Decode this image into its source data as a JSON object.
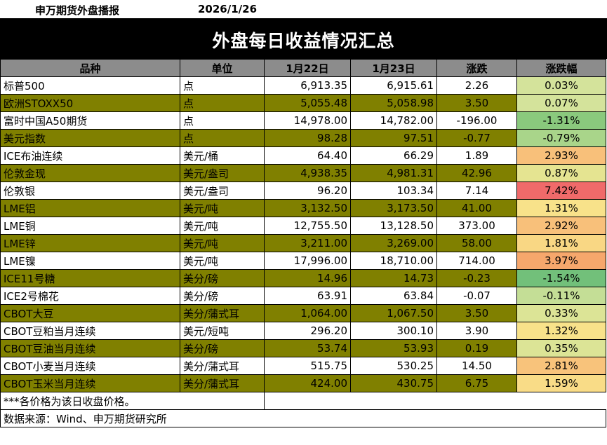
{
  "header": {
    "brand": "申万期货外盘播报",
    "date": "2026/1/26"
  },
  "title": "外盘每日收益情况汇总",
  "columns": [
    "品种",
    "单位",
    "1月22日",
    "1月23日",
    "涨跌",
    "涨跌幅"
  ],
  "rows": [
    {
      "name": "标普500",
      "unit": "点",
      "d1": "6,913.35",
      "d2": "6,915.61",
      "chg": "2.26",
      "pct": "0.03%",
      "pct_color": "#d4e39b"
    },
    {
      "name": "欧洲STOXX50",
      "unit": "点",
      "d1": "5,055.48",
      "d2": "5,058.98",
      "chg": "3.50",
      "pct": "0.07%",
      "pct_color": "#d4e39b"
    },
    {
      "name": "富时中国A50期货",
      "unit": "点",
      "d1": "14,978.00",
      "d2": "14,782.00",
      "chg": "-196.00",
      "pct": "-1.31%",
      "pct_color": "#8ac97d"
    },
    {
      "name": "美元指数",
      "unit": "点",
      "d1": "98.28",
      "d2": "97.51",
      "chg": "-0.77",
      "pct": "-0.79%",
      "pct_color": "#a9d58a"
    },
    {
      "name": "ICE布油连续",
      "unit": "美元/桶",
      "d1": "64.40",
      "d2": "66.29",
      "chg": "1.89",
      "pct": "2.93%",
      "pct_color": "#f8c07a"
    },
    {
      "name": "伦敦金现",
      "unit": "美元/盎司",
      "d1": "4,938.35",
      "d2": "4,981.31",
      "chg": "42.96",
      "pct": "0.87%",
      "pct_color": "#e5e491"
    },
    {
      "name": "伦敦银",
      "unit": "美元/盎司",
      "d1": "96.20",
      "d2": "103.34",
      "chg": "7.14",
      "pct": "7.42%",
      "pct_color": "#f06a6a"
    },
    {
      "name": "LME铝",
      "unit": "美元/吨",
      "d1": "3,132.50",
      "d2": "3,173.50",
      "chg": "41.00",
      "pct": "1.31%",
      "pct_color": "#f8e28a"
    },
    {
      "name": "LME铜",
      "unit": "美元/吨",
      "d1": "12,755.50",
      "d2": "13,128.50",
      "chg": "373.00",
      "pct": "2.92%",
      "pct_color": "#f8c07a"
    },
    {
      "name": "LME锌",
      "unit": "美元/吨",
      "d1": "3,211.00",
      "d2": "3,269.00",
      "chg": "58.00",
      "pct": "1.81%",
      "pct_color": "#f9d784"
    },
    {
      "name": "LME镍",
      "unit": "美元/吨",
      "d1": "17,996.00",
      "d2": "18,710.00",
      "chg": "714.00",
      "pct": "3.97%",
      "pct_color": "#f6a76c"
    },
    {
      "name": "ICE11号糖",
      "unit": "美分/磅",
      "d1": "14.96",
      "d2": "14.73",
      "chg": "-0.23",
      "pct": "-1.54%",
      "pct_color": "#72c07a"
    },
    {
      "name": "ICE2号棉花",
      "unit": "美分/磅",
      "d1": "63.91",
      "d2": "63.84",
      "chg": "-0.07",
      "pct": "-0.11%",
      "pct_color": "#c4de96"
    },
    {
      "name": "CBOT大豆",
      "unit": "美分/蒲式耳",
      "d1": "1,064.00",
      "d2": "1,067.50",
      "chg": "3.50",
      "pct": "0.33%",
      "pct_color": "#dce496"
    },
    {
      "name": "CBOT豆粕当月连续",
      "unit": "美元/短吨",
      "d1": "296.20",
      "d2": "300.10",
      "chg": "3.90",
      "pct": "1.32%",
      "pct_color": "#f8e28a"
    },
    {
      "name": "CBOT豆油当月连续",
      "unit": "美分/磅",
      "d1": "53.74",
      "d2": "53.93",
      "chg": "0.19",
      "pct": "0.35%",
      "pct_color": "#dce496"
    },
    {
      "name": "CBOT小麦当月连续",
      "unit": "美分/蒲式耳",
      "d1": "515.75",
      "d2": "530.25",
      "chg": "14.50",
      "pct": "2.81%",
      "pct_color": "#f8c37b"
    },
    {
      "name": "CBOT玉米当月连续",
      "unit": "美分/蒲式耳",
      "d1": "424.00",
      "d2": "430.75",
      "chg": "6.75",
      "pct": "1.59%",
      "pct_color": "#f9dc87"
    }
  ],
  "notes": {
    "price_note": "***各价格为该日收盘价格。",
    "source": "数据来源：Wind、申万期货研究所"
  }
}
